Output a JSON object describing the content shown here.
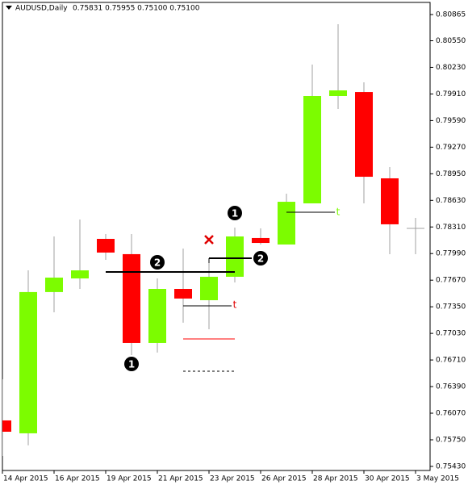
{
  "chart_data": {
    "type": "candlestick",
    "title": "AUDUSD,Daily",
    "subtitle": "0.75831 0.75955 0.75100 0.75100",
    "categories": [
      "14 Apr 2015",
      null,
      "16 Apr 2015",
      null,
      "19 Apr 2015",
      null,
      "21 Apr 2015",
      null,
      "23 Apr 2015",
      null,
      "26 Apr 2015",
      null,
      "28 Apr 2015",
      null,
      "30 Apr 2015",
      null,
      "3 May 2015"
    ],
    "open": [
      0.75983,
      0.75828,
      0.77527,
      0.77691,
      0.78167,
      0.77983,
      0.76915,
      0.77565,
      0.77429,
      0.77711,
      0.78177,
      0.78099,
      0.78594,
      0.79885,
      0.79933,
      0.78895,
      0.78293
    ],
    "high": [
      0.76478,
      0.77788,
      0.78196,
      0.784,
      0.78225,
      0.78225,
      0.77691,
      0.78051,
      0.77886,
      0.78303,
      0.78293,
      0.7871,
      0.80263,
      0.80749,
      0.8005,
      0.79031,
      0.78419
    ],
    "low": [
      0.75556,
      0.75683,
      0.77284,
      0.77565,
      0.77915,
      0.76769,
      0.76799,
      0.77158,
      0.7708,
      0.77643,
      0.78099,
      0.78099,
      0.78594,
      0.7973,
      0.78594,
      0.77983,
      0.77983
    ],
    "close": [
      0.75847,
      0.77527,
      0.77701,
      0.77788,
      0.78002,
      0.76915,
      0.77565,
      0.77449,
      0.77711,
      0.78196,
      0.78118,
      0.78613,
      0.79885,
      0.79953,
      0.78914,
      0.78342,
      0.78293
    ],
    "up_color": "#7cfc00",
    "down_color": "#ff0000",
    "doji_color": "#a0a0a0",
    "wick_color": "#a0a0a0",
    "ylim": [
      0.75381,
      0.81011
    ],
    "yticks": [
      0.80865,
      {
        "value": 0.8055,
        "label": "0.80550"
      },
      {
        "value": 0.8023,
        "label": "0.80230"
      },
      {
        "value": 0.7991,
        "label": "0.79910"
      },
      {
        "value": 0.7959,
        "label": "0.79590"
      },
      {
        "value": 0.7927,
        "label": "0.79270"
      },
      {
        "value": 0.7895,
        "label": "0.78950"
      },
      {
        "value": 0.7863,
        "label": "0.78630"
      },
      {
        "value": 0.7831,
        "label": "0.78310"
      },
      {
        "value": 0.7799,
        "label": "0.77990"
      },
      {
        "value": 0.7767,
        "label": "0.77670"
      },
      {
        "value": 0.7735,
        "label": "0.77350"
      },
      {
        "value": 0.7703,
        "label": "0.77030"
      },
      {
        "value": 0.7671,
        "label": "0.76710"
      },
      {
        "value": 0.7639,
        "label": "0.76390"
      },
      {
        "value": 0.7607,
        "label": "0.76070"
      },
      {
        "value": 0.7575,
        "label": "0.75750"
      },
      {
        "value": 0.7543,
        "label": "0.75430"
      }
    ],
    "annotations": [
      "1",
      "2",
      "2",
      "1",
      "t",
      "t"
    ]
  }
}
